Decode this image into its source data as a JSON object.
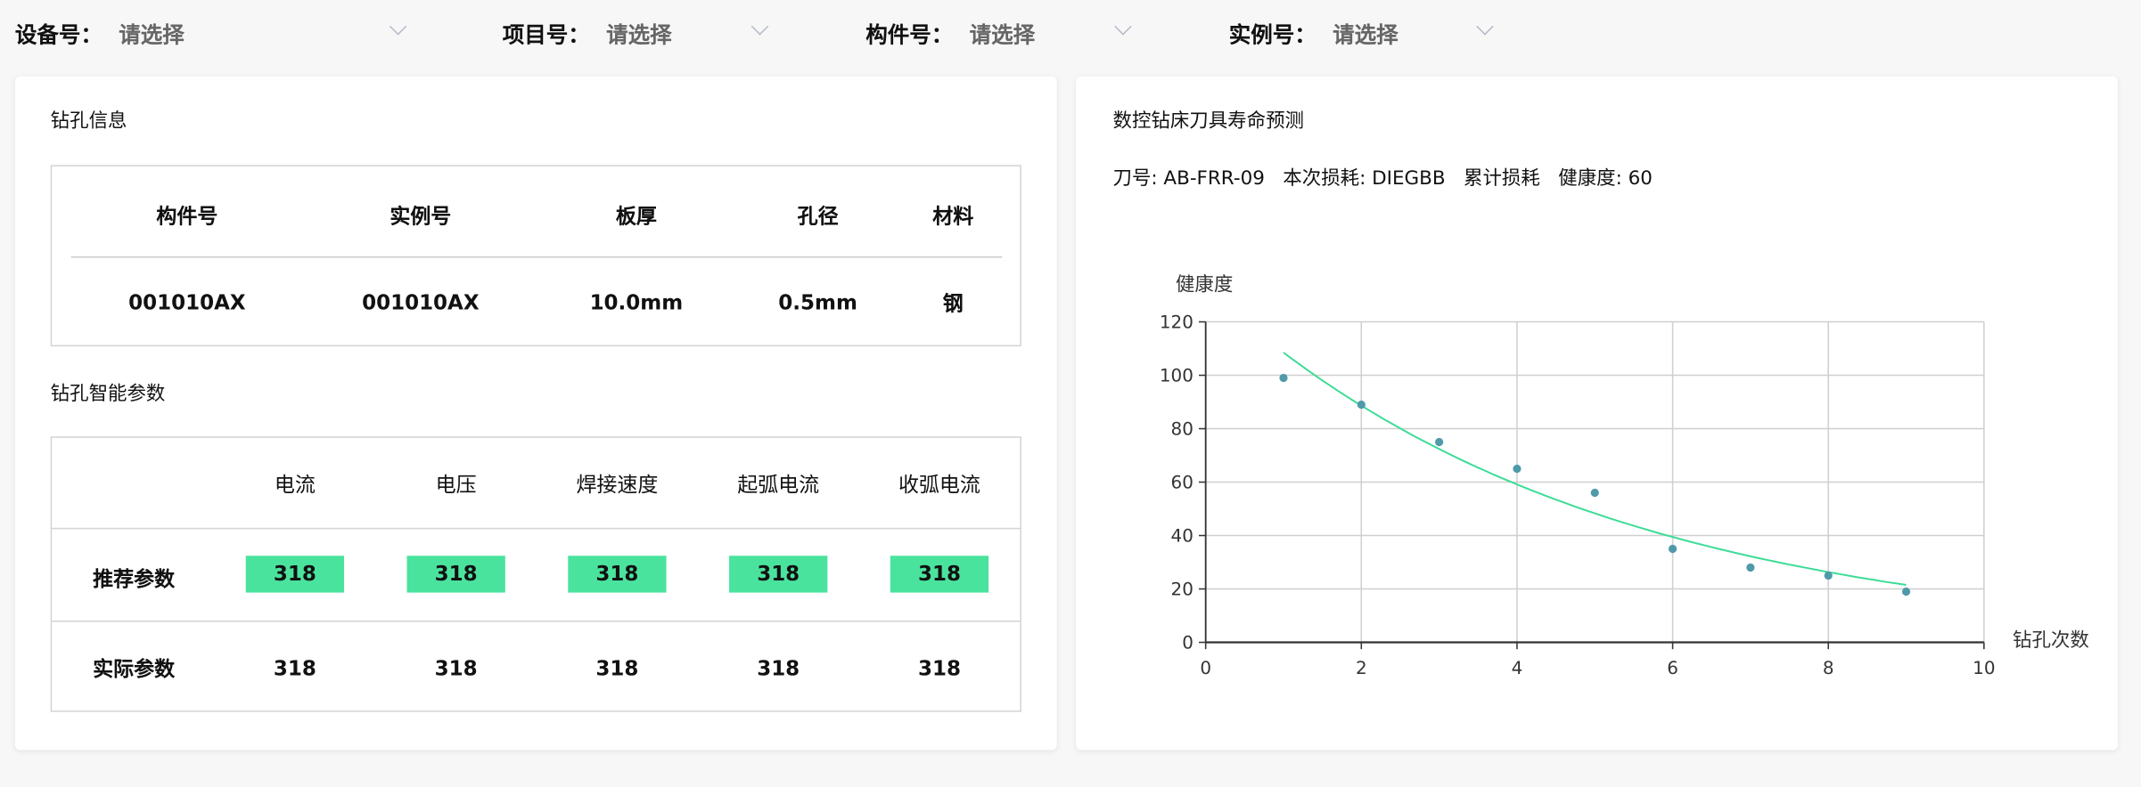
{
  "filters": [
    {
      "label": "设备号：",
      "value": "请选择"
    },
    {
      "label": "项目号：",
      "value": "请选择"
    },
    {
      "label": "构件号：",
      "value": "请选择"
    },
    {
      "label": "实例号：",
      "value": "请选择"
    }
  ],
  "drill_info": {
    "title": "钻孔信息",
    "headers": [
      "构件号",
      "实例号",
      "板厚",
      "孔径",
      "材料"
    ],
    "row": [
      "001010AX",
      "001010AX",
      "10.0mm",
      "0.5mm",
      "钢"
    ]
  },
  "params": {
    "title": "钻孔智能参数",
    "headers": [
      "电流",
      "电压",
      "焊接速度",
      "起弧电流",
      "收弧电流"
    ],
    "rows": [
      {
        "label": "推荐参数",
        "values": [
          "318",
          "318",
          "318",
          "318",
          "318"
        ]
      },
      {
        "label": "实际参数",
        "values": [
          "318",
          "318",
          "318",
          "318",
          "318"
        ]
      }
    ],
    "highlight_color": "#4ae39e"
  },
  "prediction": {
    "title": "数控钻床刀具寿命预测",
    "info": "刀号: AB-FRR-09   本次损耗: DIEGBB   累计损耗   健康度: 60"
  },
  "chart_data": {
    "type": "scatter",
    "xlabel": "钻孔次数",
    "ylabel": "健康度",
    "xlim": [
      0,
      10
    ],
    "ylim": [
      0,
      120
    ],
    "xticks": [
      "0",
      "2",
      "4",
      "6",
      "8",
      "10"
    ],
    "yticks": [
      "0",
      "20",
      "40",
      "60",
      "80",
      "100",
      "120"
    ],
    "grid": true,
    "points": {
      "x": [
        1,
        2,
        3,
        4,
        5,
        6,
        7,
        8,
        9
      ],
      "y": [
        99,
        89,
        75,
        65,
        56,
        35,
        28,
        25,
        19
      ],
      "color": "#4f9aa8"
    },
    "trend": {
      "x": [
        1,
        2,
        3,
        4,
        5,
        6,
        7,
        8,
        9
      ],
      "y": [
        108.5,
        88.6,
        72.4,
        59.1,
        48.3,
        39.4,
        32.2,
        26.3,
        21.5
      ],
      "color": "#3ddc97"
    }
  }
}
